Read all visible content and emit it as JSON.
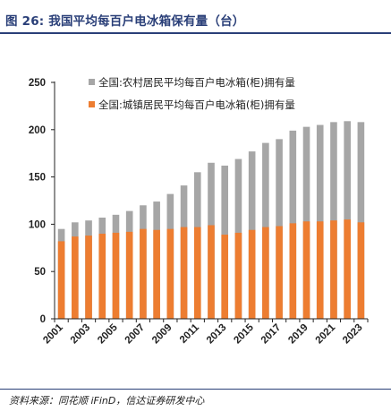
{
  "header": {
    "title": "图 26:  我国平均每百户电冰箱保有量（台）"
  },
  "footer": {
    "source": "资料来源：同花顺 iFinD，信达证券研发中心"
  },
  "colors": {
    "rural": "#a6a6a6",
    "urban": "#ed7d31",
    "title": "#2a3f78"
  },
  "chart_data": {
    "type": "bar",
    "stacked": false,
    "overlapping": true,
    "categories": [
      "2001",
      "2002",
      "2003",
      "2004",
      "2005",
      "2006",
      "2007",
      "2008",
      "2009",
      "2010",
      "2011",
      "2012",
      "2013",
      "2014",
      "2015",
      "2016",
      "2017",
      "2018",
      "2019",
      "2020",
      "2021",
      "2022",
      "2023"
    ],
    "x_tick_labels": [
      "2001",
      "2003",
      "2005",
      "2007",
      "2009",
      "2011",
      "2013",
      "2015",
      "2017",
      "2019",
      "2021",
      "2023"
    ],
    "series": [
      {
        "name": "全国:农村居民平均每百户电冰箱(柜)拥有量",
        "color": "#a6a6a6",
        "values": [
          95,
          102,
          104,
          107,
          110,
          114,
          120,
          124,
          132,
          141,
          155,
          165,
          162,
          169,
          177,
          186,
          190,
          199,
          203,
          205,
          208,
          209,
          208
        ]
      },
      {
        "name": "全国:城镇居民平均每百户电冰箱(柜)拥有量",
        "color": "#ed7d31",
        "values": [
          82,
          87,
          88,
          90,
          91,
          92,
          95,
          94,
          95,
          97,
          97,
          99,
          89,
          91,
          94,
          97,
          98,
          101,
          103,
          103,
          104,
          105,
          102
        ]
      }
    ],
    "ylim": [
      0,
      250
    ],
    "yticks": [
      "0",
      "50",
      "100",
      "150",
      "200",
      "250"
    ],
    "grid": false,
    "legend": "top-center"
  }
}
